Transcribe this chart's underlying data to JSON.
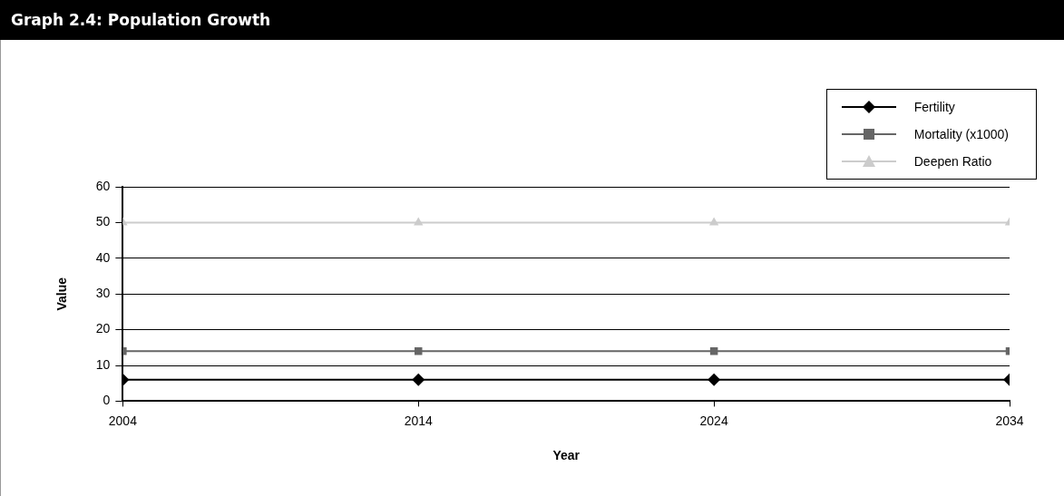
{
  "chart_data": {
    "type": "line",
    "title": "Graph 2.4: Population Growth",
    "xlabel": "Year",
    "ylabel": "Value",
    "x": [
      2004,
      2014,
      2024,
      2034
    ],
    "xlim": [
      2004,
      2034
    ],
    "xticks": [
      2004,
      2014,
      2024,
      2034
    ],
    "ylim": [
      0,
      60
    ],
    "yticks": [
      0,
      10,
      20,
      30,
      40,
      50,
      60
    ],
    "grid": "y",
    "legend": "top right",
    "line_style": "solid",
    "series": [
      {
        "name": "Fertility",
        "color": "#000000",
        "marker": "diamond",
        "values": [
          6,
          6,
          6,
          6
        ]
      },
      {
        "name": "Mortality (x1000)",
        "color": "#666666",
        "marker": "square",
        "values": [
          14,
          14,
          14,
          14
        ]
      },
      {
        "name": "Deepen Ratio",
        "color": "#cccccc",
        "marker": "triangle",
        "values": [
          50,
          50,
          50,
          50
        ]
      }
    ]
  }
}
